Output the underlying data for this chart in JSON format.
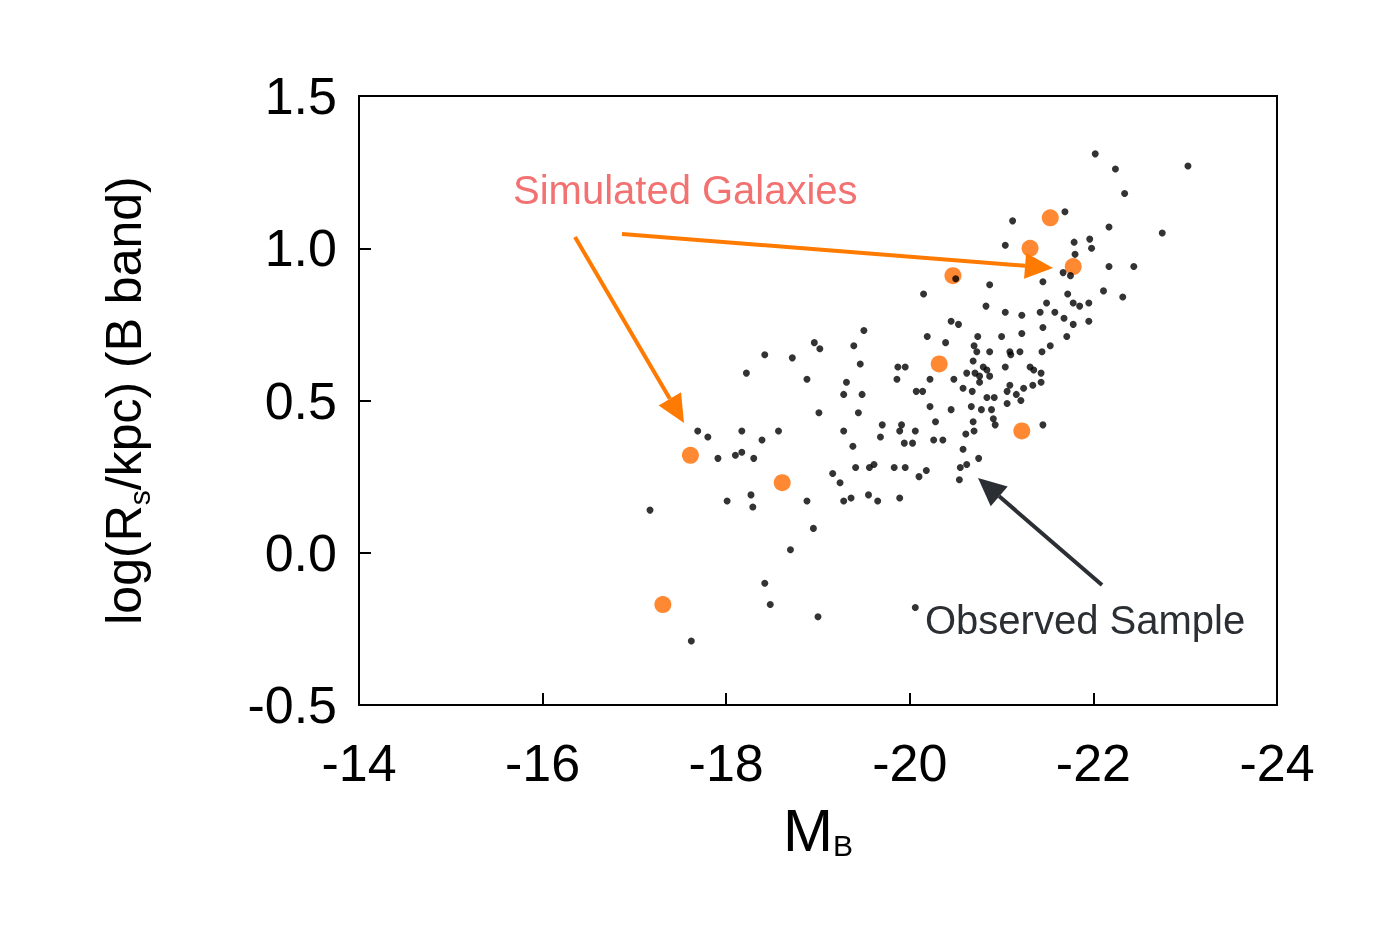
{
  "chart_data": {
    "type": "scatter",
    "xlabel": "M$_{B}$",
    "ylabel": "log(R$_{s}$/kpc) (B band)",
    "xlim": [
      -14,
      -24
    ],
    "xticks": [
      -14,
      -16,
      -18,
      -20,
      -22,
      -24
    ],
    "ylim": [
      -0.5,
      1.5
    ],
    "yticks": [
      -0.5,
      {
        "value": 0,
        "label": "0.0"
      },
      0.5,
      {
        "value": 1,
        "label": "1.0"
      },
      1.5
    ],
    "grid": false,
    "marker": "circle",
    "annotations": [
      "Simulated Galaxies",
      "Observed Sample"
    ],
    "series": [
      {
        "color": "#000000",
        "x": [
          -19.5,
          -20.19,
          -20.39,
          -18.96,
          -19.02,
          -19.39,
          -18.42,
          -18.72,
          -19.46,
          -19.87,
          -19.95,
          -18.22,
          -18.88,
          -19.31,
          -19.86,
          -20.22,
          -20.48,
          -20.07,
          -20.14,
          -19.28,
          -19.48,
          -19.01,
          -19.44,
          -20.22,
          -20.45,
          -20.28,
          -17.69,
          -17.8,
          -18.17,
          -18.39,
          -18.57,
          -19.28,
          -19.7,
          -19.68,
          -19.91,
          -19.89,
          -20.06,
          -19.94,
          -20.03,
          -20.26,
          -20.36,
          -19.38,
          -17.91,
          -18.1,
          -18.17,
          -18.3,
          -19.16,
          -19.24,
          -19.41,
          -19.56,
          -19.61,
          -19.83,
          -19.95,
          -20.1,
          -20.18,
          -18.01,
          -18.27,
          -18.29,
          -18.88,
          -19.28,
          -19.36,
          -19.55,
          -19.65,
          -19.89,
          -17.17,
          -18.95,
          -18.7,
          -18.42,
          -18.48,
          -19.0,
          -20.06,
          -17.62,
          -22.02,
          -22.24,
          -23.03,
          -22.34,
          -21.69,
          -21.12,
          -22.17,
          -22.75,
          -21.04,
          -21.79,
          -21.96,
          -21.98,
          -21.8,
          -20.5,
          -21.67,
          -21.75,
          -22.17,
          -22.44,
          -20.87,
          -20.15,
          -21.45,
          -22.11,
          -22.32,
          -21.72,
          -21.49,
          -20.83,
          -21.78,
          -21.85,
          -21.95,
          -21.04,
          -21.22,
          -21.42,
          -21.58,
          -21.68,
          -21.78,
          -21.95,
          -20.45,
          -20.53,
          -20.74,
          -21.0,
          -21.22,
          -21.45,
          -21.71,
          -20.7,
          -20.73,
          -20.87,
          -21.09,
          -21.1,
          -21.2,
          -21.44,
          -21.53,
          -20.69,
          -20.8,
          -20.84,
          -20.62,
          -20.71,
          -20.76,
          -20.87,
          -20.76,
          -21.04,
          -21.31,
          -21.35,
          -21.43,
          -21.43,
          -21.34,
          -21.24,
          -21.09,
          -21.06,
          -21.16,
          -20.58,
          -20.68,
          -20.84,
          -20.92,
          -21.06,
          -21.21,
          -20.67,
          -20.78,
          -20.89,
          -20.91,
          -20.93,
          -20.69,
          -20.7,
          -20.61,
          -21.45,
          -20.58,
          -20.75,
          -20.62,
          -20.55,
          -20.54
        ],
        "values": [
          0.73,
          0.71,
          0.69,
          0.69,
          0.67,
          0.68,
          0.65,
          0.64,
          0.62,
          0.61,
          0.61,
          0.59,
          0.57,
          0.56,
          0.57,
          0.57,
          0.57,
          0.53,
          0.53,
          0.52,
          0.52,
          0.46,
          0.46,
          0.48,
          0.47,
          0.43,
          0.4,
          0.38,
          0.4,
          0.37,
          0.4,
          0.4,
          0.42,
          0.38,
          0.42,
          0.4,
          0.4,
          0.36,
          0.36,
          0.37,
          0.37,
          0.35,
          0.31,
          0.32,
          0.33,
          0.31,
          0.26,
          0.23,
          0.28,
          0.28,
          0.29,
          0.28,
          0.28,
          0.25,
          0.27,
          0.17,
          0.19,
          0.15,
          0.17,
          0.17,
          0.18,
          0.19,
          0.17,
          0.18,
          0.14,
          0.08,
          0.01,
          -0.1,
          -0.17,
          -0.21,
          -0.18,
          -0.29,
          1.31,
          1.26,
          1.27,
          1.18,
          1.12,
          1.09,
          1.07,
          1.05,
          1.01,
          1.02,
          1.03,
          1.0,
          0.98,
          0.9,
          0.92,
          0.91,
          0.94,
          0.94,
          0.88,
          0.85,
          0.89,
          0.86,
          0.84,
          0.85,
          0.82,
          0.81,
          0.82,
          0.81,
          0.82,
          0.79,
          0.78,
          0.79,
          0.79,
          0.77,
          0.75,
          0.76,
          0.76,
          0.75,
          0.71,
          0.71,
          0.72,
          0.74,
          0.71,
          0.68,
          0.66,
          0.66,
          0.66,
          0.65,
          0.66,
          0.66,
          0.68,
          0.63,
          0.61,
          0.6,
          0.59,
          0.59,
          0.58,
          0.58,
          0.56,
          0.61,
          0.61,
          0.6,
          0.59,
          0.56,
          0.55,
          0.54,
          0.55,
          0.53,
          0.52,
          0.54,
          0.53,
          0.51,
          0.51,
          0.49,
          0.5,
          0.48,
          0.47,
          0.47,
          0.44,
          0.42,
          0.43,
          0.4,
          0.39,
          0.42,
          0.34,
          0.31,
          0.29,
          0.28,
          0.24
        ]
      },
      {
        "color": "#ff6a00",
        "x": [
          -17.61,
          -18.61,
          -17.31,
          -20.47,
          -20.32,
          -21.22,
          -21.31,
          -21.53,
          -21.78
        ],
        "values": [
          0.32,
          0.23,
          -0.17,
          0.91,
          0.62,
          0.4,
          1.0,
          1.1,
          0.94
        ]
      }
    ]
  }
}
